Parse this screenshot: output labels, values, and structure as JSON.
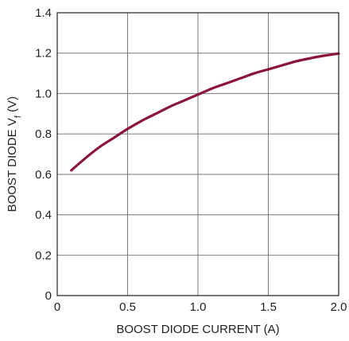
{
  "chart_data": {
    "type": "line",
    "title": "",
    "xlabel": "BOOST DIODE CURRENT (A)",
    "ylabel": {
      "main": "BOOST DIODE V",
      "subscript": "f",
      "suffix": " (V)"
    },
    "xlim": [
      0,
      2.0
    ],
    "ylim": [
      0,
      1.4
    ],
    "grid": true,
    "x_ticks": [
      {
        "value": 0,
        "label": "0"
      },
      {
        "value": 0.5,
        "label": "0.5"
      },
      {
        "value": 1.0,
        "label": "1.0"
      },
      {
        "value": 1.5,
        "label": "1.5"
      },
      {
        "value": 2.0,
        "label": "2.0"
      }
    ],
    "y_ticks": [
      {
        "value": 0,
        "label": "0"
      },
      {
        "value": 0.2,
        "label": "0.2"
      },
      {
        "value": 0.4,
        "label": "0.4"
      },
      {
        "value": 0.6,
        "label": "0.6"
      },
      {
        "value": 0.8,
        "label": "0.8"
      },
      {
        "value": 1.0,
        "label": "1.0"
      },
      {
        "value": 1.2,
        "label": "1.2"
      },
      {
        "value": 1.4,
        "label": "1.4"
      }
    ],
    "series": [
      {
        "color": "#8b1538",
        "x": [
          0.1,
          0.2,
          0.3,
          0.4,
          0.5,
          0.6,
          0.7,
          0.8,
          0.9,
          1.0,
          1.1,
          1.2,
          1.3,
          1.4,
          1.5,
          1.6,
          1.7,
          1.8,
          1.9,
          2.0
        ],
        "y": [
          0.62,
          0.68,
          0.735,
          0.78,
          0.825,
          0.865,
          0.9,
          0.935,
          0.965,
          0.995,
          1.025,
          1.05,
          1.075,
          1.1,
          1.12,
          1.14,
          1.16,
          1.175,
          1.188,
          1.198
        ]
      }
    ]
  }
}
